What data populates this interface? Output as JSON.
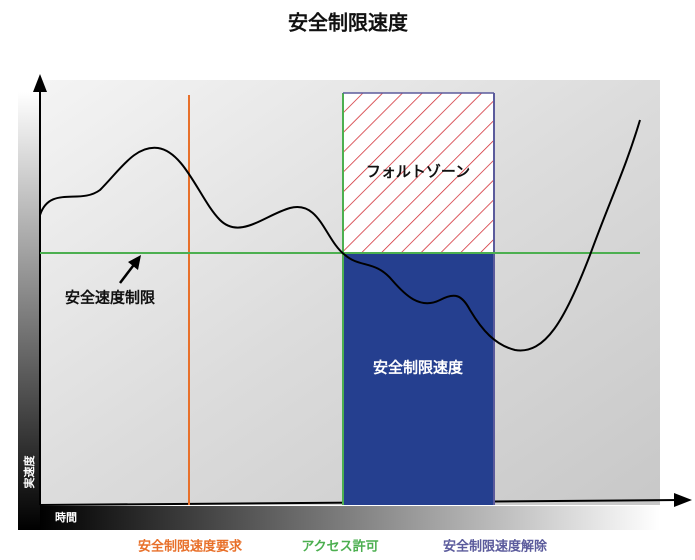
{
  "title": "安全制限速度",
  "fault_zone_label": "フォルトゾーン",
  "speed_limit_label": "安全速度制限",
  "safe_zone_label": "安全制限速度",
  "y_axis_label": "実速度",
  "x_axis_label": "時間",
  "events": [
    "安全制限速度要求",
    "アクセス許可",
    "安全制限速度解除"
  ]
}
